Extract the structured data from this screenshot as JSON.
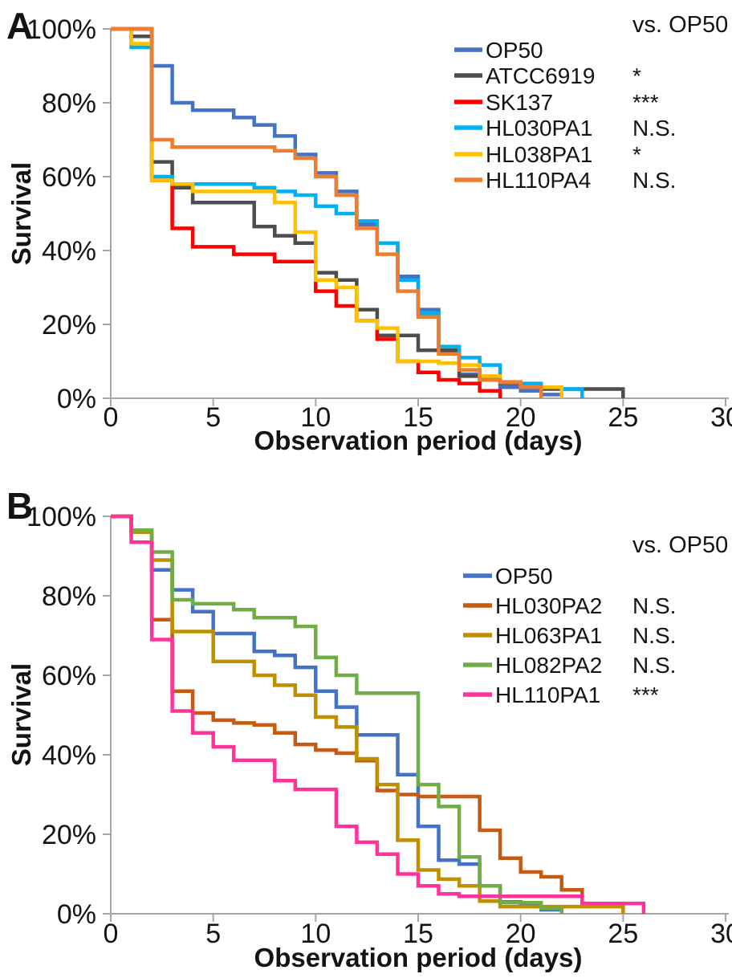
{
  "figure": {
    "kind": "survival-curves",
    "panel_count": 2
  },
  "panels": [
    {
      "panel_label": "A",
      "y_axis_title": "Survival",
      "x_axis_title": "Observation period (days)",
      "comparison_header": "vs. OP50",
      "chart_data": {
        "type": "line",
        "step": "post",
        "title": "",
        "xlabel": "Observation period (days)",
        "ylabel": "Survival",
        "xlim": [
          0,
          30
        ],
        "ylim": [
          0,
          100
        ],
        "grid": false,
        "legend_position": "top-right",
        "x_ticks": [
          0,
          5,
          10,
          15,
          20,
          25,
          30
        ],
        "y_ticks": [
          0,
          20,
          40,
          60,
          80,
          100
        ],
        "y_tick_format": "percent",
        "series": [
          {
            "name": "OP50",
            "color": "#4472C4",
            "significance": "",
            "points": [
              [
                0,
                100
              ],
              [
                2,
                90
              ],
              [
                3,
                80
              ],
              [
                4,
                78
              ],
              [
                6,
                76
              ],
              [
                7,
                74
              ],
              [
                8,
                71
              ],
              [
                9,
                66
              ],
              [
                10,
                61
              ],
              [
                11,
                56
              ],
              [
                12,
                47
              ],
              [
                13,
                42
              ],
              [
                14,
                33
              ],
              [
                15,
                24
              ],
              [
                16,
                13
              ],
              [
                17,
                6.5
              ],
              [
                18,
                5
              ],
              [
                19,
                3
              ],
              [
                20,
                2
              ],
              [
                21,
                1
              ],
              [
                22,
                0
              ]
            ]
          },
          {
            "name": "ATCC6919",
            "color": "#4D4D4D",
            "significance": "*",
            "points": [
              [
                0,
                100
              ],
              [
                1,
                98
              ],
              [
                2,
                64
              ],
              [
                3,
                57
              ],
              [
                4,
                53
              ],
              [
                7,
                46.5
              ],
              [
                8,
                44
              ],
              [
                9,
                42
              ],
              [
                10,
                34
              ],
              [
                11,
                32
              ],
              [
                12,
                24
              ],
              [
                13,
                17
              ],
              [
                15,
                13
              ],
              [
                17,
                6
              ],
              [
                18,
                5
              ],
              [
                19,
                4
              ],
              [
                20,
                3
              ],
              [
                21,
                2.5
              ],
              [
                25,
                0
              ]
            ]
          },
          {
            "name": "SK137",
            "color": "#FF0000",
            "significance": "***",
            "points": [
              [
                0,
                100
              ],
              [
                2,
                59
              ],
              [
                3,
                46
              ],
              [
                4,
                41
              ],
              [
                6,
                39
              ],
              [
                8,
                37
              ],
              [
                10,
                29
              ],
              [
                11,
                25
              ],
              [
                12,
                21
              ],
              [
                13,
                16
              ],
              [
                14,
                10
              ],
              [
                15,
                7
              ],
              [
                16,
                5
              ],
              [
                17,
                4
              ],
              [
                18,
                2
              ],
              [
                19,
                0
              ]
            ]
          },
          {
            "name": "HL030PA1",
            "color": "#00B0F0",
            "significance": "N.S.",
            "points": [
              [
                0,
                100
              ],
              [
                1,
                95
              ],
              [
                2,
                60
              ],
              [
                3,
                58
              ],
              [
                7,
                57
              ],
              [
                8,
                56
              ],
              [
                9,
                55
              ],
              [
                10,
                52
              ],
              [
                11,
                50
              ],
              [
                12,
                48
              ],
              [
                13,
                42
              ],
              [
                14,
                32
              ],
              [
                15,
                23
              ],
              [
                16,
                14
              ],
              [
                17,
                11
              ],
              [
                18,
                9
              ],
              [
                19,
                4.5
              ],
              [
                20,
                4
              ],
              [
                21,
                3
              ],
              [
                22,
                2.5
              ],
              [
                23,
                0
              ]
            ]
          },
          {
            "name": "HL038PA1",
            "color": "#FFC000",
            "significance": "*",
            "points": [
              [
                0,
                100
              ],
              [
                1,
                96
              ],
              [
                2,
                59
              ],
              [
                3,
                58
              ],
              [
                4,
                56
              ],
              [
                8,
                53
              ],
              [
                9,
                45
              ],
              [
                10,
                32
              ],
              [
                11,
                30
              ],
              [
                12,
                21
              ],
              [
                13,
                19
              ],
              [
                14,
                10
              ],
              [
                16,
                9.5
              ],
              [
                17,
                9
              ],
              [
                18,
                6
              ],
              [
                19,
                4.5
              ],
              [
                20,
                3
              ],
              [
                22,
                0
              ]
            ]
          },
          {
            "name": "HL110PA4",
            "color": "#ED7D31",
            "significance": "N.S.",
            "points": [
              [
                0,
                100
              ],
              [
                2,
                70
              ],
              [
                3,
                68
              ],
              [
                8,
                67
              ],
              [
                9,
                65
              ],
              [
                10,
                60
              ],
              [
                11,
                55
              ],
              [
                12,
                46
              ],
              [
                13,
                39
              ],
              [
                14,
                29
              ],
              [
                15,
                22
              ],
              [
                16,
                12
              ],
              [
                17,
                7.7
              ],
              [
                18,
                5
              ],
              [
                19,
                4.3
              ],
              [
                20,
                3
              ],
              [
                21,
                0
              ]
            ]
          }
        ]
      }
    },
    {
      "panel_label": "B",
      "y_axis_title": "Survival",
      "x_axis_title": "Observation period (days)",
      "comparison_header": "vs. OP50",
      "chart_data": {
        "type": "line",
        "step": "post",
        "title": "",
        "xlabel": "Observation period (days)",
        "ylabel": "Survival",
        "xlim": [
          0,
          30
        ],
        "ylim": [
          0,
          100
        ],
        "grid": false,
        "legend_position": "top-right",
        "x_ticks": [
          0,
          5,
          10,
          15,
          20,
          25,
          30
        ],
        "y_ticks": [
          0,
          20,
          40,
          60,
          80,
          100
        ],
        "y_tick_format": "percent",
        "series": [
          {
            "name": "OP50",
            "color": "#4472C4",
            "significance": "",
            "points": [
              [
                0,
                100
              ],
              [
                1,
                96
              ],
              [
                2,
                86.5
              ],
              [
                3,
                81.5
              ],
              [
                4,
                76
              ],
              [
                5,
                70.5
              ],
              [
                7,
                66
              ],
              [
                8,
                65
              ],
              [
                9,
                62
              ],
              [
                10,
                56
              ],
              [
                11,
                52
              ],
              [
                12,
                45
              ],
              [
                14,
                35
              ],
              [
                15,
                22
              ],
              [
                16,
                13.5
              ],
              [
                17,
                12.5
              ],
              [
                18,
                7
              ],
              [
                19,
                3
              ],
              [
                20,
                2
              ],
              [
                21,
                1
              ],
              [
                22,
                0
              ]
            ]
          },
          {
            "name": "HL030PA2",
            "color": "#C55A11",
            "significance": "N.S.",
            "points": [
              [
                0,
                100
              ],
              [
                1,
                96
              ],
              [
                2,
                74
              ],
              [
                3,
                56
              ],
              [
                4,
                50.5
              ],
              [
                5,
                48.7
              ],
              [
                6,
                48
              ],
              [
                7,
                47.5
              ],
              [
                8,
                45.5
              ],
              [
                9,
                42.6
              ],
              [
                10,
                41.2
              ],
              [
                11,
                40.4
              ],
              [
                12,
                38.5
              ],
              [
                13,
                31
              ],
              [
                14,
                30
              ],
              [
                15,
                29.5
              ],
              [
                18,
                21
              ],
              [
                19,
                14
              ],
              [
                20,
                10.5
              ],
              [
                21,
                9.3
              ],
              [
                22,
                6
              ],
              [
                23,
                2.4
              ],
              [
                25,
                0
              ]
            ]
          },
          {
            "name": "HL063PA1",
            "color": "#BF8F00",
            "significance": "N.S.",
            "points": [
              [
                0,
                100
              ],
              [
                1,
                96
              ],
              [
                2,
                89
              ],
              [
                3,
                71
              ],
              [
                5,
                63.5
              ],
              [
                7,
                60
              ],
              [
                8,
                57.5
              ],
              [
                9,
                55
              ],
              [
                10,
                49.5
              ],
              [
                11,
                47
              ],
              [
                12,
                39
              ],
              [
                13,
                32.5
              ],
              [
                14,
                18.5
              ],
              [
                15,
                11
              ],
              [
                16,
                8.7
              ],
              [
                17,
                7
              ],
              [
                18,
                3.2
              ],
              [
                19,
                1.8
              ],
              [
                25,
                0
              ]
            ]
          },
          {
            "name": "HL082PA2",
            "color": "#70AD47",
            "significance": "N.S.",
            "points": [
              [
                0,
                100
              ],
              [
                1,
                96.5
              ],
              [
                2,
                91
              ],
              [
                3,
                79
              ],
              [
                4,
                78
              ],
              [
                6,
                76.5
              ],
              [
                7,
                74.5
              ],
              [
                9,
                72.3
              ],
              [
                10,
                64.5
              ],
              [
                11,
                60
              ],
              [
                12,
                55.5
              ],
              [
                15,
                32.5
              ],
              [
                16,
                27
              ],
              [
                17,
                14.3
              ],
              [
                18,
                7
              ],
              [
                19,
                2.8
              ],
              [
                21,
                1.4
              ],
              [
                22,
                0
              ]
            ]
          },
          {
            "name": "HL110PA1",
            "color": "#FF3399",
            "significance": "***",
            "points": [
              [
                0,
                100
              ],
              [
                1,
                93.5
              ],
              [
                2,
                69
              ],
              [
                3,
                51
              ],
              [
                4,
                45.5
              ],
              [
                5,
                42
              ],
              [
                6,
                38.6
              ],
              [
                8,
                33.5
              ],
              [
                9,
                31.3
              ],
              [
                11,
                22
              ],
              [
                12,
                18
              ],
              [
                13,
                15
              ],
              [
                14,
                10
              ],
              [
                15,
                7
              ],
              [
                16,
                5
              ],
              [
                17,
                4.4
              ],
              [
                23,
                2.6
              ],
              [
                26,
                0
              ]
            ]
          }
        ]
      }
    }
  ]
}
